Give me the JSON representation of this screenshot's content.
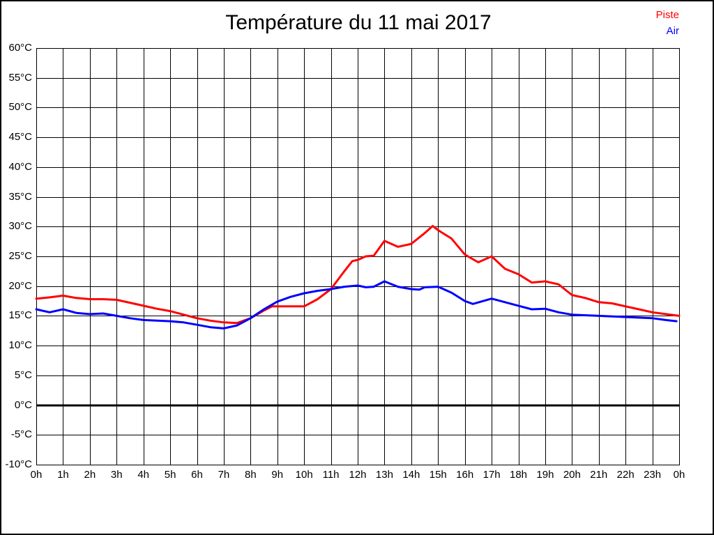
{
  "window": {
    "background": "#ffffff",
    "frame_color": "#000000"
  },
  "header": {
    "title": "Température du 11 mai 2017"
  },
  "legend": {
    "piste": {
      "label": "Piste",
      "color": "#ff0000"
    },
    "air": {
      "label": "Air",
      "color": "#0000ff"
    }
  },
  "chart_data": {
    "type": "line",
    "title": "Température du 11 mai 2017",
    "xlim": [
      0,
      24
    ],
    "ylim": [
      -10,
      60
    ],
    "y_step": 5,
    "grid": true,
    "grid_color": "#000000",
    "zero_line": {
      "value": 0,
      "bold": true,
      "color": "#000000"
    },
    "legend_position": "top-right",
    "x_ticks": {
      "values": [
        0,
        1,
        2,
        3,
        4,
        5,
        6,
        7,
        8,
        9,
        10,
        11,
        12,
        13,
        14,
        15,
        16,
        17,
        18,
        19,
        20,
        21,
        22,
        23,
        24
      ],
      "labels": [
        "0h",
        "1h",
        "2h",
        "3h",
        "4h",
        "5h",
        "6h",
        "7h",
        "8h",
        "9h",
        "10h",
        "11h",
        "12h",
        "13h",
        "14h",
        "15h",
        "16h",
        "17h",
        "18h",
        "19h",
        "20h",
        "21h",
        "22h",
        "23h",
        "0h"
      ]
    },
    "y_ticks": {
      "values": [
        60,
        55,
        50,
        45,
        40,
        35,
        30,
        25,
        20,
        15,
        10,
        5,
        0,
        -5,
        -10
      ],
      "labels": [
        "60°C",
        "55°C",
        "50°C",
        "45°C",
        "40°C",
        "35°C",
        "30°C",
        "25°C",
        "20°C",
        "15°C",
        "10°C",
        "5°C",
        "0°C",
        "-5°C",
        "-10°C"
      ]
    },
    "series": [
      {
        "name": "Piste",
        "color": "#ff0000",
        "points": [
          [
            0,
            17.9
          ],
          [
            0.5,
            18.1
          ],
          [
            1,
            18.4
          ],
          [
            1.5,
            18.0
          ],
          [
            2,
            17.8
          ],
          [
            2.5,
            17.8
          ],
          [
            3,
            17.7
          ],
          [
            3.5,
            17.2
          ],
          [
            4,
            16.7
          ],
          [
            4.5,
            16.2
          ],
          [
            5,
            15.8
          ],
          [
            5.5,
            15.2
          ],
          [
            6,
            14.6
          ],
          [
            6.5,
            14.2
          ],
          [
            7,
            13.9
          ],
          [
            7.5,
            13.8
          ],
          [
            8,
            14.6
          ],
          [
            8.5,
            15.9
          ],
          [
            8.8,
            16.6
          ],
          [
            9,
            16.6
          ],
          [
            9.5,
            16.6
          ],
          [
            10,
            16.6
          ],
          [
            10.5,
            17.8
          ],
          [
            11,
            19.5
          ],
          [
            11.5,
            22.5
          ],
          [
            11.8,
            24.2
          ],
          [
            12,
            24.4
          ],
          [
            12.3,
            25.0
          ],
          [
            12.6,
            25.1
          ],
          [
            13,
            27.6
          ],
          [
            13.5,
            26.6
          ],
          [
            14,
            27.1
          ],
          [
            14.5,
            28.9
          ],
          [
            14.8,
            30.1
          ],
          [
            15,
            29.4
          ],
          [
            15.5,
            28.0
          ],
          [
            16,
            25.3
          ],
          [
            16.5,
            24.0
          ],
          [
            17,
            25.0
          ],
          [
            17.5,
            22.9
          ],
          [
            18,
            22.0
          ],
          [
            18.5,
            20.6
          ],
          [
            19,
            20.8
          ],
          [
            19.5,
            20.3
          ],
          [
            19.8,
            19.2
          ],
          [
            20,
            18.5
          ],
          [
            20.5,
            18.0
          ],
          [
            21,
            17.3
          ],
          [
            21.5,
            17.1
          ],
          [
            22,
            16.6
          ],
          [
            22.5,
            16.1
          ],
          [
            23,
            15.6
          ],
          [
            23.5,
            15.3
          ],
          [
            24,
            15.0
          ]
        ]
      },
      {
        "name": "Air",
        "color": "#0000ff",
        "points": [
          [
            0,
            16.1
          ],
          [
            0.5,
            15.6
          ],
          [
            1,
            16.1
          ],
          [
            1.5,
            15.5
          ],
          [
            2,
            15.3
          ],
          [
            2.5,
            15.4
          ],
          [
            3,
            15.0
          ],
          [
            3.5,
            14.6
          ],
          [
            4,
            14.3
          ],
          [
            4.5,
            14.2
          ],
          [
            5,
            14.1
          ],
          [
            5.5,
            13.9
          ],
          [
            6,
            13.5
          ],
          [
            6.5,
            13.1
          ],
          [
            7,
            12.9
          ],
          [
            7.5,
            13.4
          ],
          [
            8,
            14.6
          ],
          [
            8.5,
            16.1
          ],
          [
            9,
            17.4
          ],
          [
            9.5,
            18.2
          ],
          [
            10,
            18.8
          ],
          [
            10.5,
            19.2
          ],
          [
            11,
            19.5
          ],
          [
            11.5,
            19.9
          ],
          [
            12,
            20.1
          ],
          [
            12.3,
            19.8
          ],
          [
            12.6,
            19.9
          ],
          [
            13,
            20.8
          ],
          [
            13.5,
            19.9
          ],
          [
            14,
            19.5
          ],
          [
            14.3,
            19.4
          ],
          [
            14.5,
            19.8
          ],
          [
            15,
            19.9
          ],
          [
            15.5,
            18.9
          ],
          [
            16,
            17.5
          ],
          [
            16.3,
            17.0
          ],
          [
            17,
            17.9
          ],
          [
            17.5,
            17.3
          ],
          [
            18,
            16.7
          ],
          [
            18.5,
            16.1
          ],
          [
            19,
            16.2
          ],
          [
            19.5,
            15.6
          ],
          [
            20,
            15.2
          ],
          [
            21,
            15.0
          ],
          [
            22,
            14.8
          ],
          [
            23,
            14.6
          ],
          [
            23.5,
            14.3
          ],
          [
            23.9,
            14.1
          ]
        ]
      }
    ]
  }
}
